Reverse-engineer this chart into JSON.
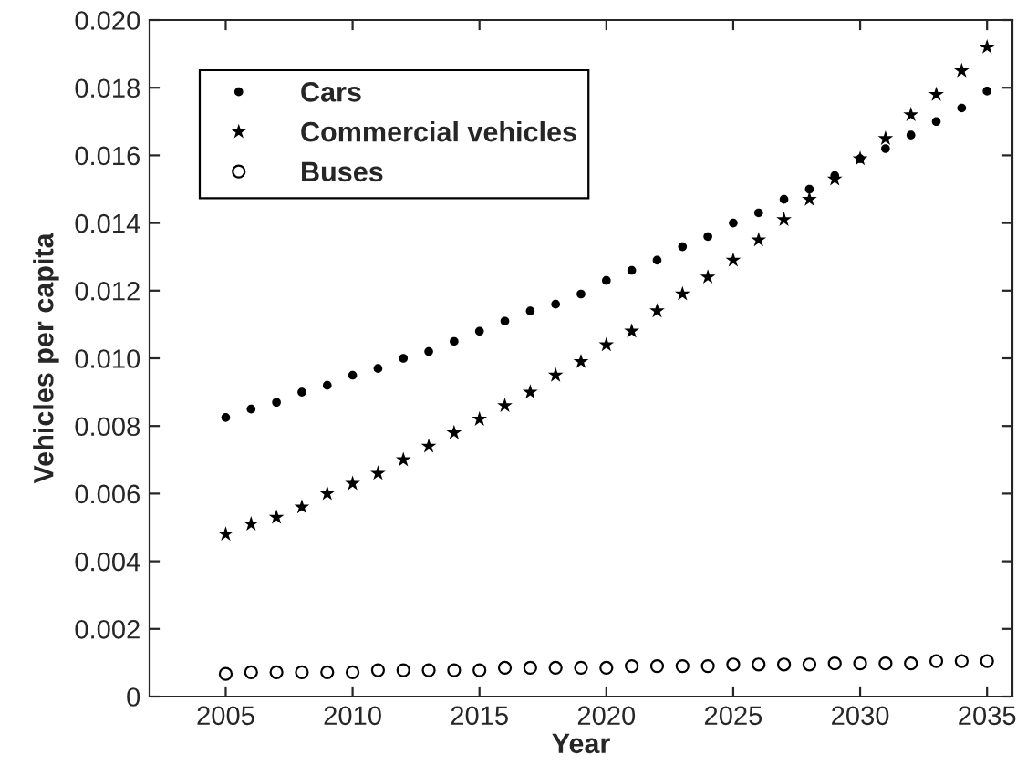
{
  "chart_data": {
    "type": "scatter",
    "xlabel": "Year",
    "ylabel": "Vehicles per capita",
    "x": [
      2005,
      2006,
      2007,
      2008,
      2009,
      2010,
      2011,
      2012,
      2013,
      2014,
      2015,
      2016,
      2017,
      2018,
      2019,
      2020,
      2021,
      2022,
      2023,
      2024,
      2025,
      2026,
      2027,
      2028,
      2029,
      2030,
      2031,
      2032,
      2033,
      2034,
      2035
    ],
    "series": [
      {
        "name": "Cars",
        "color": "#000000",
        "marker": "circle",
        "values": [
          0.00825,
          0.0085,
          0.0087,
          0.009,
          0.0092,
          0.0095,
          0.0097,
          0.01,
          0.0102,
          0.0105,
          0.0108,
          0.0111,
          0.0114,
          0.0116,
          0.0119,
          0.0123,
          0.0126,
          0.0129,
          0.0133,
          0.0136,
          0.014,
          0.0143,
          0.0147,
          0.015,
          0.0154,
          0.0159,
          0.0162,
          0.0166,
          0.017,
          0.0174,
          0.0179
        ]
      },
      {
        "name": "Commercial vehicles",
        "color": "#000000",
        "marker": "star",
        "values": [
          0.0048,
          0.0051,
          0.0053,
          0.0056,
          0.006,
          0.0063,
          0.0066,
          0.007,
          0.0074,
          0.0078,
          0.0082,
          0.0086,
          0.009,
          0.0095,
          0.0099,
          0.0104,
          0.0108,
          0.0114,
          0.0119,
          0.0124,
          0.0129,
          0.0135,
          0.0141,
          0.0147,
          0.0153,
          0.0159,
          0.0165,
          0.0172,
          0.0178,
          0.0185,
          0.0192
        ]
      },
      {
        "name": "Buses",
        "color": "#000000",
        "marker": "open circle",
        "values": [
          0.00067,
          0.00072,
          0.00072,
          0.00072,
          0.00072,
          0.00072,
          0.00078,
          0.00078,
          0.00078,
          0.00078,
          0.00078,
          0.00085,
          0.00085,
          0.00085,
          0.00085,
          0.00085,
          0.0009,
          0.0009,
          0.0009,
          0.0009,
          0.00095,
          0.00095,
          0.00095,
          0.00095,
          0.00098,
          0.00098,
          0.00098,
          0.00098,
          0.00105,
          0.00105,
          0.00105
        ]
      }
    ],
    "xlim": [
      2002,
      2036
    ],
    "xticks": [
      2005,
      2010,
      2015,
      2020,
      2025,
      2030,
      2035
    ],
    "ylim": [
      0,
      0.02
    ],
    "yticks": [
      {
        "value": 0,
        "label": "0"
      },
      {
        "value": 0.002,
        "label": "0.002"
      },
      {
        "value": 0.004,
        "label": "0.004"
      },
      {
        "value": 0.006,
        "label": "0.006"
      },
      {
        "value": 0.008,
        "label": "0.008"
      },
      {
        "value": 0.01,
        "label": "0.010"
      },
      {
        "value": 0.012,
        "label": "0.012"
      },
      {
        "value": 0.014,
        "label": "0.014"
      },
      {
        "value": 0.016,
        "label": "0.016"
      },
      {
        "value": 0.018,
        "label": "0.018"
      },
      {
        "value": 0.02,
        "label": "0.020"
      }
    ],
    "grid": false,
    "legend": "top left"
  }
}
